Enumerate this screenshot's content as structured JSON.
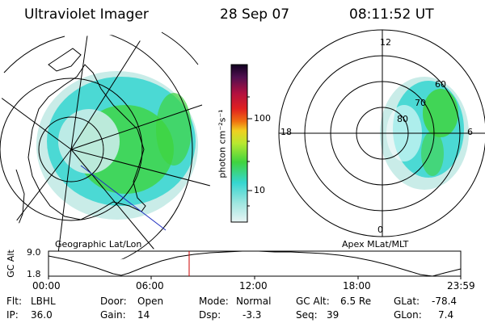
{
  "header": {
    "title": "Ultraviolet Imager",
    "date": "28 Sep 07",
    "time": "08:11:52 UT"
  },
  "left_panel": {
    "caption": "Geographic Lat/Lon"
  },
  "right_panel": {
    "caption": "Apex MLat/MLT",
    "mlt_labels": [
      "12",
      "18",
      "6",
      "0"
    ],
    "lat_labels": [
      "60",
      "70",
      "80"
    ]
  },
  "colorbar": {
    "unit_label": "photon cm⁻²s⁻¹",
    "ticks": [
      "100",
      "10"
    ],
    "scale": "log"
  },
  "altitude_plot": {
    "ylabel": "GC Alt",
    "y_ticks": [
      "9.0",
      "1.8"
    ],
    "x_ticks": [
      "00:00",
      "06:00",
      "12:00",
      "18:00",
      "23:59"
    ],
    "current_time_marker": "08:11"
  },
  "info": {
    "flt": {
      "label": "Flt:",
      "value": "LBHL"
    },
    "door": {
      "label": "Door:",
      "value": "Open"
    },
    "mode": {
      "label": "Mode:",
      "value": "Normal"
    },
    "gc_alt": {
      "label": "GC Alt:",
      "value": "6.5 Re"
    },
    "glat": {
      "label": "GLat:",
      "value": "-78.4"
    },
    "ip": {
      "label": "IP:",
      "value": "36.0"
    },
    "gain": {
      "label": "Gain:",
      "value": "14"
    },
    "dsp": {
      "label": "Dsp:",
      "value": "-3.3"
    },
    "seq": {
      "label": "Seq:",
      "value": "39"
    },
    "glon": {
      "label": "GLon:",
      "value": "7.4"
    }
  },
  "colors": {
    "cyan": "#35d6d0",
    "green": "#3fd43f",
    "pale": "#c9ece8",
    "marker": "#cc0000"
  }
}
